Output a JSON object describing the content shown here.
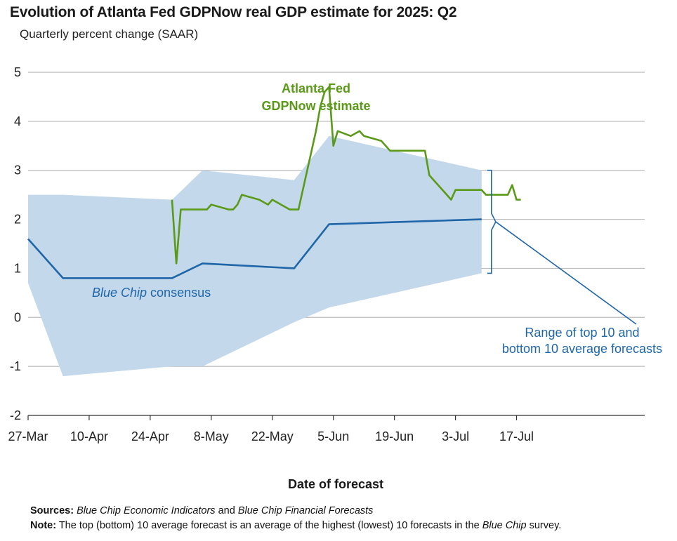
{
  "header": {
    "title": "Evolution of Atlanta Fed GDPNow real GDP estimate for 2025: Q2",
    "subtitle": "Quarterly percent change (SAAR)"
  },
  "footer": {
    "sources_label": "Sources:",
    "sources_part1": "Blue Chip Economic Indicators",
    "sources_and": " and ",
    "sources_part2": "Blue Chip Financial Forecasts",
    "note_label": "Note:",
    "note_text": " The top (bottom) 10 average forecast is an average of the highest (lowest) 10 forecasts in the ",
    "note_italic": "Blue Chip",
    "note_end": " survey."
  },
  "chart_data": {
    "type": "line",
    "title": "Evolution of Atlanta Fed GDPNow real GDP estimate for 2025: Q2",
    "subtitle": "Quarterly percent change (SAAR)",
    "xlabel": "Date of forecast",
    "ylabel": "",
    "ylim": [
      -2,
      5
    ],
    "yticks": [
      "-2",
      "-1",
      "0",
      "1",
      "2",
      "3",
      "4",
      "5"
    ],
    "x_ticks": [
      "27-Mar",
      "10-Apr",
      "24-Apr",
      "8-May",
      "22-May",
      "5-Jun",
      "19-Jun",
      "3-Jul",
      "17-Jul"
    ],
    "grid": true,
    "colors": {
      "gdpnow": "#5b9a18",
      "bluechip": "#1f66a8",
      "range": "#c3d8ea",
      "bracket": "#1f66a8",
      "grid": "#bbbbbb"
    },
    "annotations": {
      "gdpnow_line1": "Atlanta Fed",
      "gdpnow_line2": "GDPNow estimate",
      "bluechip_italic": "Blue Chip",
      "bluechip_rest": " consensus",
      "range_line1": "Range of top 10 and",
      "range_line2": "bottom 10 average forecasts"
    },
    "series": [
      {
        "name": "Atlanta Fed GDPNow estimate",
        "x": [
          "2025-04-29",
          "2025-04-30",
          "2025-05-01",
          "2025-05-05",
          "2025-05-07",
          "2025-05-08",
          "2025-05-12",
          "2025-05-13",
          "2025-05-14",
          "2025-05-15",
          "2025-05-19",
          "2025-05-21",
          "2025-05-22",
          "2025-05-26",
          "2025-05-28",
          "2025-06-01",
          "2025-06-02",
          "2025-06-03",
          "2025-06-04",
          "2025-06-05",
          "2025-06-06",
          "2025-06-09",
          "2025-06-10",
          "2025-06-11",
          "2025-06-12",
          "2025-06-16",
          "2025-06-18",
          "2025-06-26",
          "2025-06-27",
          "2025-07-01",
          "2025-07-02",
          "2025-07-03",
          "2025-07-07",
          "2025-07-09",
          "2025-07-10",
          "2025-07-15",
          "2025-07-16",
          "2025-07-17",
          "2025-07-18"
        ],
        "values": [
          2.4,
          1.1,
          2.2,
          2.2,
          2.2,
          2.3,
          2.2,
          2.2,
          2.3,
          2.5,
          2.4,
          2.3,
          2.4,
          2.2,
          2.2,
          3.8,
          4.3,
          4.6,
          4.7,
          3.5,
          3.8,
          3.7,
          3.75,
          3.8,
          3.7,
          3.6,
          3.4,
          3.4,
          2.9,
          2.5,
          2.4,
          2.6,
          2.6,
          2.6,
          2.5,
          2.5,
          2.7,
          2.4,
          2.4
        ]
      },
      {
        "name": "Blue Chip consensus",
        "x": [
          "2025-03-27",
          "2025-04-04",
          "2025-04-29",
          "2025-05-06",
          "2025-05-27",
          "2025-06-04",
          "2025-07-09"
        ],
        "values": [
          1.6,
          0.8,
          0.8,
          1.1,
          1.0,
          1.9,
          2.0
        ]
      },
      {
        "name": "Range of top 10 and bottom 10 average forecasts",
        "x": [
          "2025-03-27",
          "2025-04-04",
          "2025-04-29",
          "2025-05-06",
          "2025-05-27",
          "2025-06-04",
          "2025-07-09"
        ],
        "upper": [
          2.5,
          2.5,
          2.4,
          3.0,
          2.8,
          3.7,
          3.0
        ],
        "lower": [
          0.7,
          -1.2,
          -1.0,
          -1.0,
          -0.1,
          0.2,
          0.9
        ]
      }
    ]
  }
}
